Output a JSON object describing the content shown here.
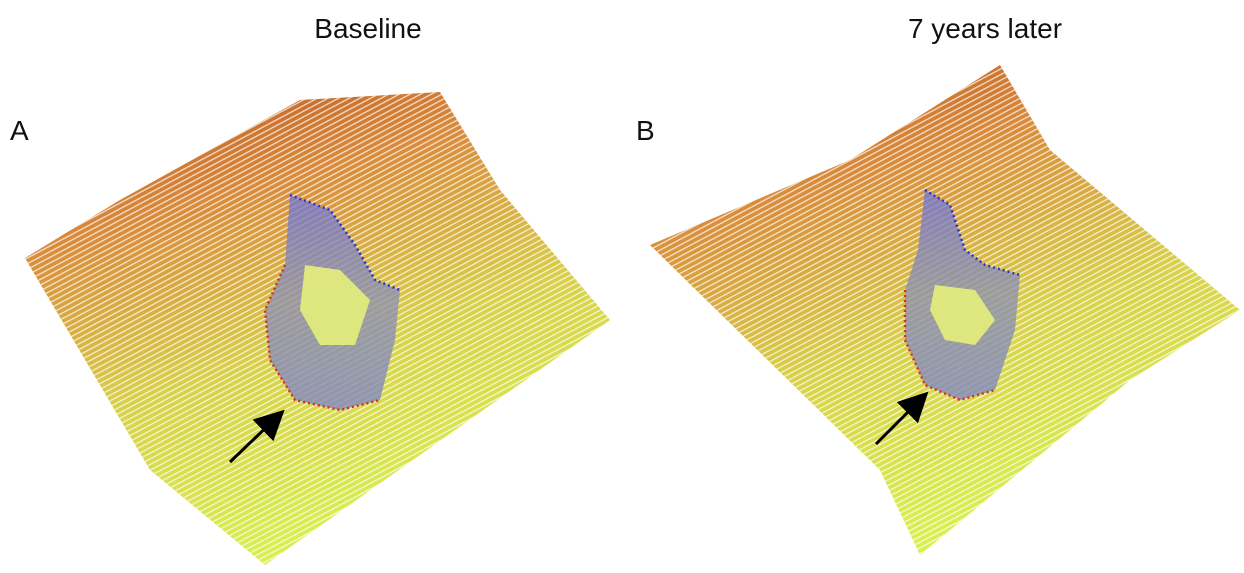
{
  "panels": [
    {
      "label": "A",
      "title": "Baseline"
    },
    {
      "label": "B",
      "title": "7 years later"
    }
  ]
}
